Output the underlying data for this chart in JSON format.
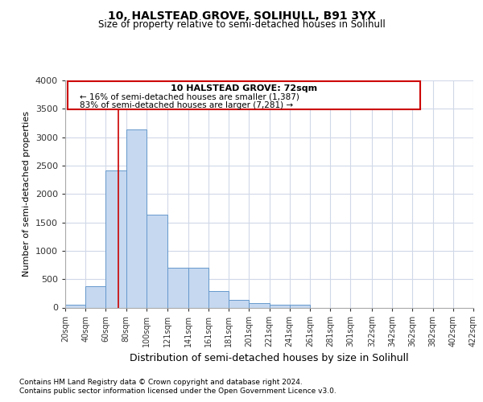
{
  "title1": "10, HALSTEAD GROVE, SOLIHULL, B91 3YX",
  "title2": "Size of property relative to semi-detached houses in Solihull",
  "xlabel": "Distribution of semi-detached houses by size in Solihull",
  "ylabel": "Number of semi-detached properties",
  "footnote1": "Contains HM Land Registry data © Crown copyright and database right 2024.",
  "footnote2": "Contains public sector information licensed under the Open Government Licence v3.0.",
  "annotation_line1": "10 HALSTEAD GROVE: 72sqm",
  "annotation_line2": "← 16% of semi-detached houses are smaller (1,387)",
  "annotation_line3": "83% of semi-detached houses are larger (7,281) →",
  "bar_bins": [
    20,
    40,
    60,
    80,
    100,
    121,
    141,
    161,
    181,
    201,
    221,
    241,
    261,
    281,
    301,
    322,
    342,
    362,
    382,
    402,
    422
  ],
  "bar_values": [
    50,
    375,
    2420,
    3140,
    1640,
    700,
    700,
    290,
    140,
    75,
    55,
    45,
    0,
    0,
    0,
    0,
    0,
    0,
    0,
    0
  ],
  "bar_color": "#c5d8f0",
  "bar_edge_color": "#6699cc",
  "vline_color": "#cc0000",
  "vline_x": 72,
  "annotation_box_color": "#ffffff",
  "annotation_box_edge": "#cc0000",
  "ylim": [
    0,
    4000
  ],
  "yticks": [
    0,
    500,
    1000,
    1500,
    2000,
    2500,
    3000,
    3500,
    4000
  ],
  "background_color": "#ffffff",
  "axes_background": "#ffffff",
  "grid_color": "#d0d8e8"
}
